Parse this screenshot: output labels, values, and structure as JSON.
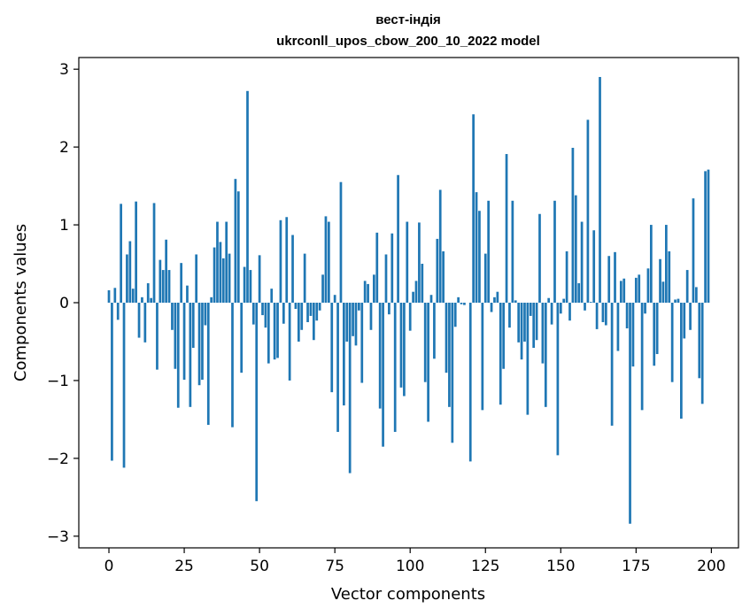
{
  "chart_data": {
    "type": "bar",
    "title_line1": "вест-індія",
    "title_line2": "ukrconll_upos_cbow_200_10_2022 model",
    "xlabel": "Vector components",
    "ylabel": "Components values",
    "xlim": [
      -10,
      209
    ],
    "ylim": [
      -3.15,
      3.15
    ],
    "xticks": [
      0,
      25,
      50,
      75,
      100,
      125,
      150,
      175,
      200
    ],
    "yticks": [
      -3,
      -2,
      -1,
      0,
      1,
      2,
      3
    ],
    "ytick_labels": [
      "−3",
      "−2",
      "−1",
      "0",
      "1",
      "2",
      "3"
    ],
    "bar_color": "#1f77b4",
    "x": [
      0,
      1,
      2,
      3,
      4,
      5,
      6,
      7,
      8,
      9,
      10,
      11,
      12,
      13,
      14,
      15,
      16,
      17,
      18,
      19,
      20,
      21,
      22,
      23,
      24,
      25,
      26,
      27,
      28,
      29,
      30,
      31,
      32,
      33,
      34,
      35,
      36,
      37,
      38,
      39,
      40,
      41,
      42,
      43,
      44,
      45,
      46,
      47,
      48,
      49,
      50,
      51,
      52,
      53,
      54,
      55,
      56,
      57,
      58,
      59,
      60,
      61,
      62,
      63,
      64,
      65,
      66,
      67,
      68,
      69,
      70,
      71,
      72,
      73,
      74,
      75,
      76,
      77,
      78,
      79,
      80,
      81,
      82,
      83,
      84,
      85,
      86,
      87,
      88,
      89,
      90,
      91,
      92,
      93,
      94,
      95,
      96,
      97,
      98,
      99,
      100,
      101,
      102,
      103,
      104,
      105,
      106,
      107,
      108,
      109,
      110,
      111,
      112,
      113,
      114,
      115,
      116,
      117,
      118,
      119,
      120,
      121,
      122,
      123,
      124,
      125,
      126,
      127,
      128,
      129,
      130,
      131,
      132,
      133,
      134,
      135,
      136,
      137,
      138,
      139,
      140,
      141,
      142,
      143,
      144,
      145,
      146,
      147,
      148,
      149,
      150,
      151,
      152,
      153,
      154,
      155,
      156,
      157,
      158,
      159,
      160,
      161,
      162,
      163,
      164,
      165,
      166,
      167,
      168,
      169,
      170,
      171,
      172,
      173,
      174,
      175,
      176,
      177,
      178,
      179,
      180,
      181,
      182,
      183,
      184,
      185,
      186,
      187,
      188,
      189,
      190,
      191,
      192,
      193,
      194,
      195,
      196,
      197,
      198,
      199
    ],
    "values": [
      0.16,
      -2.03,
      0.19,
      -0.22,
      1.27,
      -2.12,
      0.62,
      0.79,
      0.18,
      1.3,
      -0.45,
      0.07,
      -0.51,
      0.25,
      0.06,
      1.28,
      -0.86,
      0.55,
      0.42,
      0.81,
      0.42,
      -0.35,
      -0.85,
      -1.35,
      0.51,
      -0.99,
      0.22,
      -1.34,
      -0.58,
      0.62,
      -1.06,
      -0.99,
      -0.29,
      -1.57,
      0.07,
      0.71,
      1.04,
      0.78,
      0.57,
      1.04,
      0.63,
      -1.6,
      1.59,
      1.43,
      -0.9,
      0.46,
      2.72,
      0.42,
      -0.28,
      -2.55,
      0.61,
      -0.16,
      -0.32,
      -0.78,
      0.18,
      -0.73,
      -0.71,
      1.06,
      -0.27,
      1.1,
      -1.0,
      0.87,
      -0.08,
      -0.5,
      -0.35,
      0.63,
      -0.25,
      -0.17,
      -0.48,
      -0.23,
      -0.1,
      0.36,
      1.11,
      1.04,
      -1.15,
      0.1,
      -1.66,
      1.55,
      -1.32,
      -0.5,
      -2.19,
      -0.43,
      -0.55,
      -0.1,
      -1.03,
      0.28,
      0.24,
      -0.35,
      0.36,
      0.9,
      -1.36,
      -1.85,
      0.62,
      -0.15,
      0.89,
      -1.66,
      1.64,
      -1.09,
      -1.2,
      1.04,
      -0.36,
      0.14,
      0.28,
      1.03,
      0.5,
      -1.02,
      -1.53,
      0.1,
      -0.72,
      0.82,
      1.45,
      0.66,
      -0.9,
      -1.34,
      -1.8,
      -0.31,
      0.07,
      -0.02,
      -0.03,
      0.0,
      -2.04,
      2.42,
      1.42,
      1.18,
      -1.38,
      0.63,
      1.31,
      -0.12,
      0.07,
      0.14,
      -1.31,
      -0.85,
      1.91,
      -0.32,
      1.31,
      0.03,
      -0.51,
      -0.73,
      -0.5,
      -1.44,
      -0.17,
      -0.58,
      -0.48,
      1.14,
      -0.78,
      -1.34,
      0.06,
      -0.28,
      1.31,
      -1.96,
      -0.14,
      0.05,
      0.66,
      -0.23,
      1.99,
      1.38,
      0.25,
      1.04,
      -0.1,
      2.35,
      0.01,
      0.93,
      -0.34,
      2.9,
      -0.25,
      -0.29,
      0.6,
      -1.58,
      0.65,
      -0.62,
      0.28,
      0.31,
      -0.33,
      -2.84,
      -0.82,
      0.32,
      0.36,
      -1.38,
      -0.14,
      0.44,
      1.0,
      -0.81,
      -0.66,
      0.56,
      0.27,
      1.0,
      0.66,
      -1.02,
      0.04,
      0.05,
      -1.49,
      -0.46,
      0.42,
      -0.35,
      1.34,
      0.2,
      -0.97,
      -1.3,
      1.69,
      1.71
    ]
  }
}
